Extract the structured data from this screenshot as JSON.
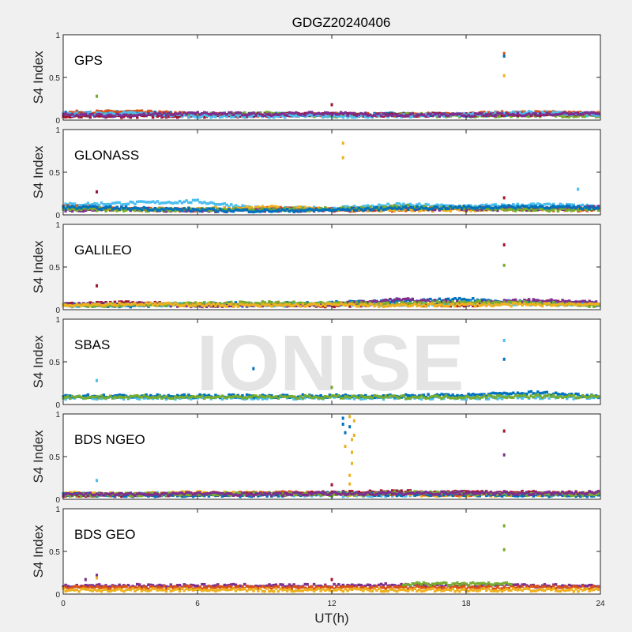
{
  "chart_data": {
    "type": "scatter",
    "title": "GDGZ20240406",
    "xlabel": "UT(h)",
    "ylabel": "S4 Index",
    "xlim": [
      0,
      24
    ],
    "ylim": [
      0,
      1
    ],
    "xticks": [
      "0",
      "6",
      "12",
      "18",
      "24"
    ],
    "yticks": [
      "0",
      "0.5",
      "1"
    ],
    "grid": false,
    "watermark": "IONISE",
    "colors": [
      "#0072BD",
      "#D95319",
      "#EDB120",
      "#7E2F8E",
      "#77AC30",
      "#4DBEEE",
      "#A2142F"
    ],
    "panels": [
      {
        "label": "GPS",
        "series": [
          {
            "color": "#0072BD",
            "x": [
              0,
              3,
              6,
              9,
              12,
              15,
              18,
              21,
              24
            ],
            "y": [
              0.08,
              0.09,
              0.07,
              0.07,
              0.06,
              0.07,
              0.06,
              0.08,
              0.07
            ]
          },
          {
            "color": "#D95319",
            "x": [
              0,
              3,
              6,
              9,
              12,
              15,
              18,
              21,
              24
            ],
            "y": [
              0.09,
              0.1,
              0.07,
              0.06,
              0.07,
              0.06,
              0.08,
              0.09,
              0.08
            ]
          },
          {
            "color": "#77AC30",
            "x": [
              0,
              3,
              6,
              9,
              12,
              15,
              18,
              21,
              24
            ],
            "y": [
              0.05,
              0.07,
              0.06,
              0.08,
              0.05,
              0.07,
              0.05,
              0.06,
              0.05
            ]
          },
          {
            "color": "#A2142F",
            "x": [
              0,
              3,
              6,
              9,
              12,
              15,
              18,
              21,
              24
            ],
            "y": [
              0.04,
              0.05,
              0.05,
              0.06,
              0.07,
              0.06,
              0.07,
              0.07,
              0.08
            ]
          },
          {
            "color": "#4DBEEE",
            "x": [
              0,
              3,
              6,
              9,
              12,
              15,
              18,
              21,
              24
            ],
            "y": [
              0.07,
              0.08,
              0.05,
              0.05,
              0.05,
              0.05,
              0.07,
              0.09,
              0.06
            ]
          },
          {
            "color": "#7E2F8E",
            "x": [
              0,
              3,
              6,
              9,
              12,
              15,
              18,
              21,
              24
            ],
            "y": [
              0.06,
              0.06,
              0.08,
              0.07,
              0.08,
              0.06,
              0.06,
              0.07,
              0.09
            ]
          }
        ],
        "outliers": [
          {
            "x": 1.5,
            "y": 0.28,
            "color": "#77AC30"
          },
          {
            "x": 12.0,
            "y": 0.18,
            "color": "#A2142F"
          },
          {
            "x": 19.7,
            "y": 0.78,
            "color": "#D95319"
          },
          {
            "x": 19.7,
            "y": 0.75,
            "color": "#0072BD"
          },
          {
            "x": 19.7,
            "y": 0.52,
            "color": "#EDB120"
          }
        ]
      },
      {
        "label": "GLONASS",
        "series": [
          {
            "color": "#4DBEEE",
            "x": [
              0,
              3,
              6,
              9,
              12,
              15,
              18,
              21,
              24
            ],
            "y": [
              0.12,
              0.14,
              0.16,
              0.07,
              0.08,
              0.12,
              0.1,
              0.12,
              0.1
            ]
          },
          {
            "color": "#D95319",
            "x": [
              0,
              3,
              6,
              9,
              12,
              15,
              18,
              21,
              24
            ],
            "y": [
              0.1,
              0.07,
              0.06,
              0.08,
              0.06,
              0.06,
              0.08,
              0.07,
              0.06
            ]
          },
          {
            "color": "#EDB120",
            "x": [
              0,
              3,
              6,
              9,
              12,
              15,
              18,
              21,
              24
            ],
            "y": [
              0.08,
              0.06,
              0.07,
              0.09,
              0.07,
              0.06,
              0.06,
              0.08,
              0.07
            ]
          },
          {
            "color": "#7E2F8E",
            "x": [
              0,
              3,
              6,
              9,
              12,
              15,
              18,
              21,
              24
            ],
            "y": [
              0.06,
              0.07,
              0.05,
              0.06,
              0.06,
              0.08,
              0.07,
              0.07,
              0.09
            ]
          },
          {
            "color": "#77AC30",
            "x": [
              0,
              3,
              6,
              9,
              12,
              15,
              18,
              21,
              24
            ],
            "y": [
              0.07,
              0.06,
              0.07,
              0.06,
              0.07,
              0.1,
              0.08,
              0.06,
              0.07
            ]
          },
          {
            "color": "#0072BD",
            "x": [
              0,
              3,
              6,
              9,
              12,
              15,
              18,
              21,
              24
            ],
            "y": [
              0.09,
              0.08,
              0.06,
              0.05,
              0.06,
              0.08,
              0.09,
              0.1,
              0.08
            ]
          }
        ],
        "outliers": [
          {
            "x": 1.5,
            "y": 0.27,
            "color": "#A2142F"
          },
          {
            "x": 12.5,
            "y": 0.84,
            "color": "#EDB120"
          },
          {
            "x": 12.5,
            "y": 0.67,
            "color": "#EDB120"
          },
          {
            "x": 19.7,
            "y": 0.2,
            "color": "#A2142F"
          },
          {
            "x": 23.0,
            "y": 0.3,
            "color": "#4DBEEE"
          }
        ]
      },
      {
        "label": "GALILEO",
        "series": [
          {
            "color": "#A2142F",
            "x": [
              0,
              3,
              6,
              9,
              12,
              15,
              18,
              21,
              24
            ],
            "y": [
              0.07,
              0.08,
              0.06,
              0.06,
              0.05,
              0.06,
              0.06,
              0.1,
              0.06
            ]
          },
          {
            "color": "#0072BD",
            "x": [
              0,
              3,
              6,
              9,
              12,
              15,
              18,
              21,
              24
            ],
            "y": [
              0.06,
              0.05,
              0.07,
              0.07,
              0.08,
              0.1,
              0.12,
              0.09,
              0.07
            ]
          },
          {
            "color": "#4DBEEE",
            "x": [
              0,
              3,
              6,
              9,
              12,
              15,
              18,
              21,
              24
            ],
            "y": [
              0.05,
              0.06,
              0.06,
              0.05,
              0.07,
              0.06,
              0.08,
              0.07,
              0.06
            ]
          },
          {
            "color": "#7E2F8E",
            "x": [
              0,
              3,
              6,
              9,
              12,
              15,
              18,
              21,
              24
            ],
            "y": [
              0.06,
              0.07,
              0.05,
              0.06,
              0.06,
              0.12,
              0.08,
              0.11,
              0.08
            ]
          },
          {
            "color": "#77AC30",
            "x": [
              0,
              3,
              6,
              9,
              12,
              15,
              18,
              21,
              24
            ],
            "y": [
              0.05,
              0.06,
              0.07,
              0.08,
              0.07,
              0.07,
              0.09,
              0.08,
              0.05
            ]
          },
          {
            "color": "#EDB120",
            "x": [
              0,
              3,
              6,
              9,
              12,
              15,
              18,
              21,
              24
            ],
            "y": [
              0.06,
              0.07,
              0.06,
              0.05,
              0.06,
              0.05,
              0.06,
              0.06,
              0.07
            ]
          }
        ],
        "outliers": [
          {
            "x": 1.5,
            "y": 0.28,
            "color": "#A2142F"
          },
          {
            "x": 19.7,
            "y": 0.76,
            "color": "#A2142F"
          },
          {
            "x": 19.7,
            "y": 0.52,
            "color": "#77AC30"
          }
        ]
      },
      {
        "label": "SBAS",
        "series": [
          {
            "color": "#4DBEEE",
            "x": [
              0,
              3,
              6,
              9,
              12,
              15,
              18,
              21,
              24
            ],
            "y": [
              0.08,
              0.08,
              0.08,
              0.08,
              0.08,
              0.08,
              0.08,
              0.09,
              0.08
            ]
          },
          {
            "color": "#0072BD",
            "x": [
              0,
              3,
              6,
              9,
              12,
              15,
              18,
              21,
              24
            ],
            "y": [
              0.1,
              0.1,
              0.1,
              0.1,
              0.1,
              0.1,
              0.11,
              0.14,
              0.1
            ]
          },
          {
            "color": "#77AC30",
            "x": [
              0,
              3,
              6,
              9,
              12,
              15,
              18,
              21,
              24
            ],
            "y": [
              0.09,
              0.09,
              0.09,
              0.09,
              0.09,
              0.09,
              0.09,
              0.1,
              0.09
            ]
          }
        ],
        "outliers": [
          {
            "x": 1.5,
            "y": 0.28,
            "color": "#4DBEEE"
          },
          {
            "x": 8.5,
            "y": 0.42,
            "color": "#0072BD"
          },
          {
            "x": 12.0,
            "y": 0.2,
            "color": "#77AC30"
          },
          {
            "x": 19.7,
            "y": 0.75,
            "color": "#4DBEEE"
          },
          {
            "x": 19.7,
            "y": 0.53,
            "color": "#0072BD"
          }
        ]
      },
      {
        "label": "BDS NGEO",
        "series": [
          {
            "color": "#4DBEEE",
            "x": [
              0,
              3,
              6,
              9,
              12,
              15,
              18,
              21,
              24
            ],
            "y": [
              0.06,
              0.06,
              0.07,
              0.06,
              0.05,
              0.05,
              0.06,
              0.06,
              0.05
            ]
          },
          {
            "color": "#EDB120",
            "x": [
              0,
              3,
              6,
              9,
              12,
              15,
              18,
              21,
              24
            ],
            "y": [
              0.07,
              0.06,
              0.08,
              0.07,
              0.06,
              0.06,
              0.05,
              0.06,
              0.07
            ]
          },
          {
            "color": "#D95319",
            "x": [
              0,
              3,
              6,
              9,
              12,
              15,
              18,
              21,
              24
            ],
            "y": [
              0.05,
              0.06,
              0.06,
              0.08,
              0.07,
              0.07,
              0.06,
              0.07,
              0.06
            ]
          },
          {
            "color": "#A2142F",
            "x": [
              0,
              3,
              6,
              9,
              12,
              15,
              18,
              21,
              24
            ],
            "y": [
              0.05,
              0.05,
              0.06,
              0.06,
              0.08,
              0.09,
              0.08,
              0.08,
              0.07
            ]
          },
          {
            "color": "#0072BD",
            "x": [
              0,
              3,
              6,
              9,
              12,
              15,
              18,
              21,
              24
            ],
            "y": [
              0.06,
              0.05,
              0.05,
              0.05,
              0.07,
              0.06,
              0.06,
              0.05,
              0.05
            ]
          },
          {
            "color": "#77AC30",
            "x": [
              0,
              3,
              6,
              9,
              12,
              15,
              18,
              21,
              24
            ],
            "y": [
              0.05,
              0.06,
              0.06,
              0.07,
              0.06,
              0.08,
              0.07,
              0.06,
              0.06
            ]
          },
          {
            "color": "#7E2F8E",
            "x": [
              0,
              3,
              6,
              9,
              12,
              15,
              18,
              21,
              24
            ],
            "y": [
              0.06,
              0.06,
              0.07,
              0.06,
              0.07,
              0.07,
              0.08,
              0.07,
              0.08
            ]
          }
        ],
        "outliers": [
          {
            "x": 1.5,
            "y": 0.22,
            "color": "#4DBEEE"
          },
          {
            "x": 12.0,
            "y": 0.17,
            "color": "#A2142F"
          },
          {
            "x": 12.5,
            "y": 0.95,
            "color": "#0072BD"
          },
          {
            "x": 12.5,
            "y": 0.88,
            "color": "#0072BD"
          },
          {
            "x": 12.6,
            "y": 0.78,
            "color": "#0072BD"
          },
          {
            "x": 12.6,
            "y": 0.62,
            "color": "#EDB120"
          },
          {
            "x": 12.8,
            "y": 0.97,
            "color": "#EDB120"
          },
          {
            "x": 12.8,
            "y": 0.85,
            "color": "#0072BD"
          },
          {
            "x": 12.9,
            "y": 0.7,
            "color": "#EDB120"
          },
          {
            "x": 12.9,
            "y": 0.55,
            "color": "#EDB120"
          },
          {
            "x": 12.9,
            "y": 0.42,
            "color": "#EDB120"
          },
          {
            "x": 13.0,
            "y": 0.92,
            "color": "#EDB120"
          },
          {
            "x": 13.0,
            "y": 0.75,
            "color": "#EDB120"
          },
          {
            "x": 12.8,
            "y": 0.28,
            "color": "#EDB120"
          },
          {
            "x": 12.8,
            "y": 0.18,
            "color": "#EDB120"
          },
          {
            "x": 19.7,
            "y": 0.8,
            "color": "#A2142F"
          },
          {
            "x": 19.7,
            "y": 0.52,
            "color": "#7E2F8E"
          }
        ]
      },
      {
        "label": "BDS GEO",
        "series": [
          {
            "color": "#7E2F8E",
            "x": [
              0,
              3,
              6,
              9,
              12,
              15,
              18,
              21,
              24
            ],
            "y": [
              0.1,
              0.1,
              0.1,
              0.1,
              0.1,
              0.11,
              0.1,
              0.1,
              0.1
            ]
          },
          {
            "color": "#D95319",
            "x": [
              0,
              3,
              6,
              9,
              12,
              15,
              18,
              21,
              24
            ],
            "y": [
              0.08,
              0.08,
              0.08,
              0.08,
              0.08,
              0.08,
              0.08,
              0.08,
              0.08
            ]
          },
          {
            "color": "#EDB120",
            "x": [
              0,
              3,
              6,
              9,
              12,
              15,
              18,
              21,
              24
            ],
            "y": [
              0.05,
              0.05,
              0.05,
              0.05,
              0.05,
              0.05,
              0.05,
              0.05,
              0.05
            ]
          },
          {
            "color": "#77AC30",
            "x": [
              15.2,
              16,
              17,
              18,
              19,
              20.1
            ],
            "y": [
              0.12,
              0.12,
              0.12,
              0.12,
              0.12,
              0.12
            ]
          }
        ],
        "outliers": [
          {
            "x": 1.0,
            "y": 0.17,
            "color": "#7E2F8E"
          },
          {
            "x": 1.5,
            "y": 0.22,
            "color": "#7E2F8E"
          },
          {
            "x": 1.5,
            "y": 0.19,
            "color": "#EDB120"
          },
          {
            "x": 12.0,
            "y": 0.17,
            "color": "#A2142F"
          },
          {
            "x": 19.7,
            "y": 0.8,
            "color": "#77AC30"
          },
          {
            "x": 19.7,
            "y": 0.52,
            "color": "#77AC30"
          }
        ]
      }
    ]
  }
}
